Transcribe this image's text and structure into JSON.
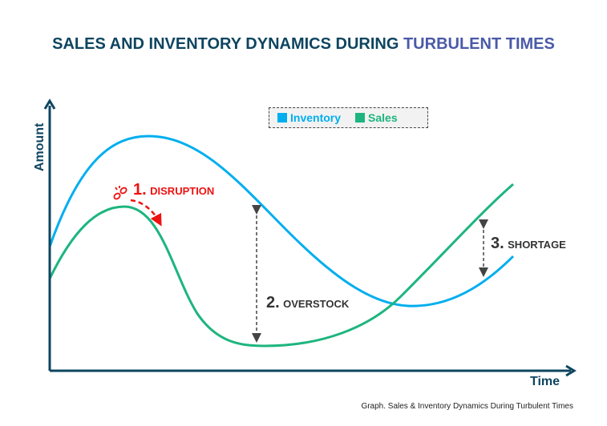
{
  "title": {
    "main": "SALES AND INVENTORY DYNAMICS DURING ",
    "highlight": "TURBULENT TIMES"
  },
  "axes": {
    "y_label": "Amount",
    "x_label": "Time"
  },
  "legend": [
    {
      "label": "Inventory",
      "color": "#00aeef"
    },
    {
      "label": "Sales",
      "color": "#1db57f"
    }
  ],
  "annotations": [
    {
      "num": "1.",
      "text": "DISRUPTION",
      "color": "#ee1111",
      "icon": "broken-chain-icon"
    },
    {
      "num": "2.",
      "text": "OVERSTOCK",
      "color": "#333333"
    },
    {
      "num": "3.",
      "text": "SHORTAGE",
      "color": "#333333"
    }
  ],
  "caption": "Graph. Sales & Inventory Dynamics During Turbulent Times",
  "colors": {
    "axis": "#0e4560"
  }
}
